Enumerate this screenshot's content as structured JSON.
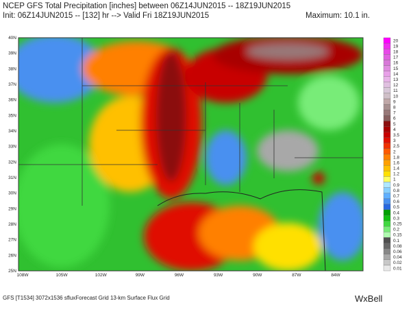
{
  "header": {
    "title": "NCEP GFS Total Precipitation [inches] between 06Z14JUN2015 -- 18Z19JUN2015",
    "subtitle": "Init: 06Z14JUN2015 -- [132] hr --> Valid Fri 18Z19JUN2015",
    "maximum": "Maximum:  10.1 in."
  },
  "map": {
    "latitudes": [
      "40N",
      "39N",
      "38N",
      "37N",
      "36N",
      "35N",
      "34N",
      "33N",
      "32N",
      "31N",
      "30N",
      "29N",
      "28N",
      "27N",
      "26N",
      "25N"
    ],
    "longitudes": [
      "108W",
      "105W",
      "102W",
      "99W",
      "96W",
      "93W",
      "90W",
      "87W",
      "84W"
    ]
  },
  "colorbar": {
    "labels": [
      "20",
      "19",
      "18",
      "17",
      "16",
      "15",
      "14",
      "13",
      "12",
      "11",
      "10",
      "9",
      "8",
      "7",
      "6",
      "5",
      "4",
      "3.5",
      "3",
      "2.5",
      "2",
      "1.8",
      "1.6",
      "1.4",
      "1.2",
      "1",
      "0.9",
      "0.8",
      "0.7",
      "0.6",
      "0.5",
      "0.4",
      "0.3",
      "0.25",
      "0.2",
      "0.15",
      "0.1",
      "0.08",
      "0.06",
      "0.04",
      "0.02",
      "0.01"
    ],
    "colors": [
      "#ff00ff",
      "#f02cf0",
      "#e848e8",
      "#e060e0",
      "#d878d8",
      "#e08ce0",
      "#e8a0e8",
      "#e8b4e8",
      "#e0c0e0",
      "#d8c8d8",
      "#d0c0c8",
      "#c0a8a8",
      "#a89090",
      "#987878",
      "#886060",
      "#8b1010",
      "#a80000",
      "#c80000",
      "#e01000",
      "#f03000",
      "#ff5a00",
      "#ff8000",
      "#ffa000",
      "#ffc000",
      "#ffe000",
      "#ffff60",
      "#b0e8ff",
      "#88d0ff",
      "#60b0ff",
      "#4890f0",
      "#2868e0",
      "#00a000",
      "#10c010",
      "#40d840",
      "#78ec78",
      "#b0fcb0",
      "#505050",
      "#686868",
      "#888888",
      "#a8a8a8",
      "#c8c8c8",
      "#e8e8e8"
    ]
  },
  "footer": {
    "source": "GFS [T1534] 3072x1536 sfluxForecast Grid 13-km Surface Flux Grid",
    "logo": "WxBell"
  }
}
